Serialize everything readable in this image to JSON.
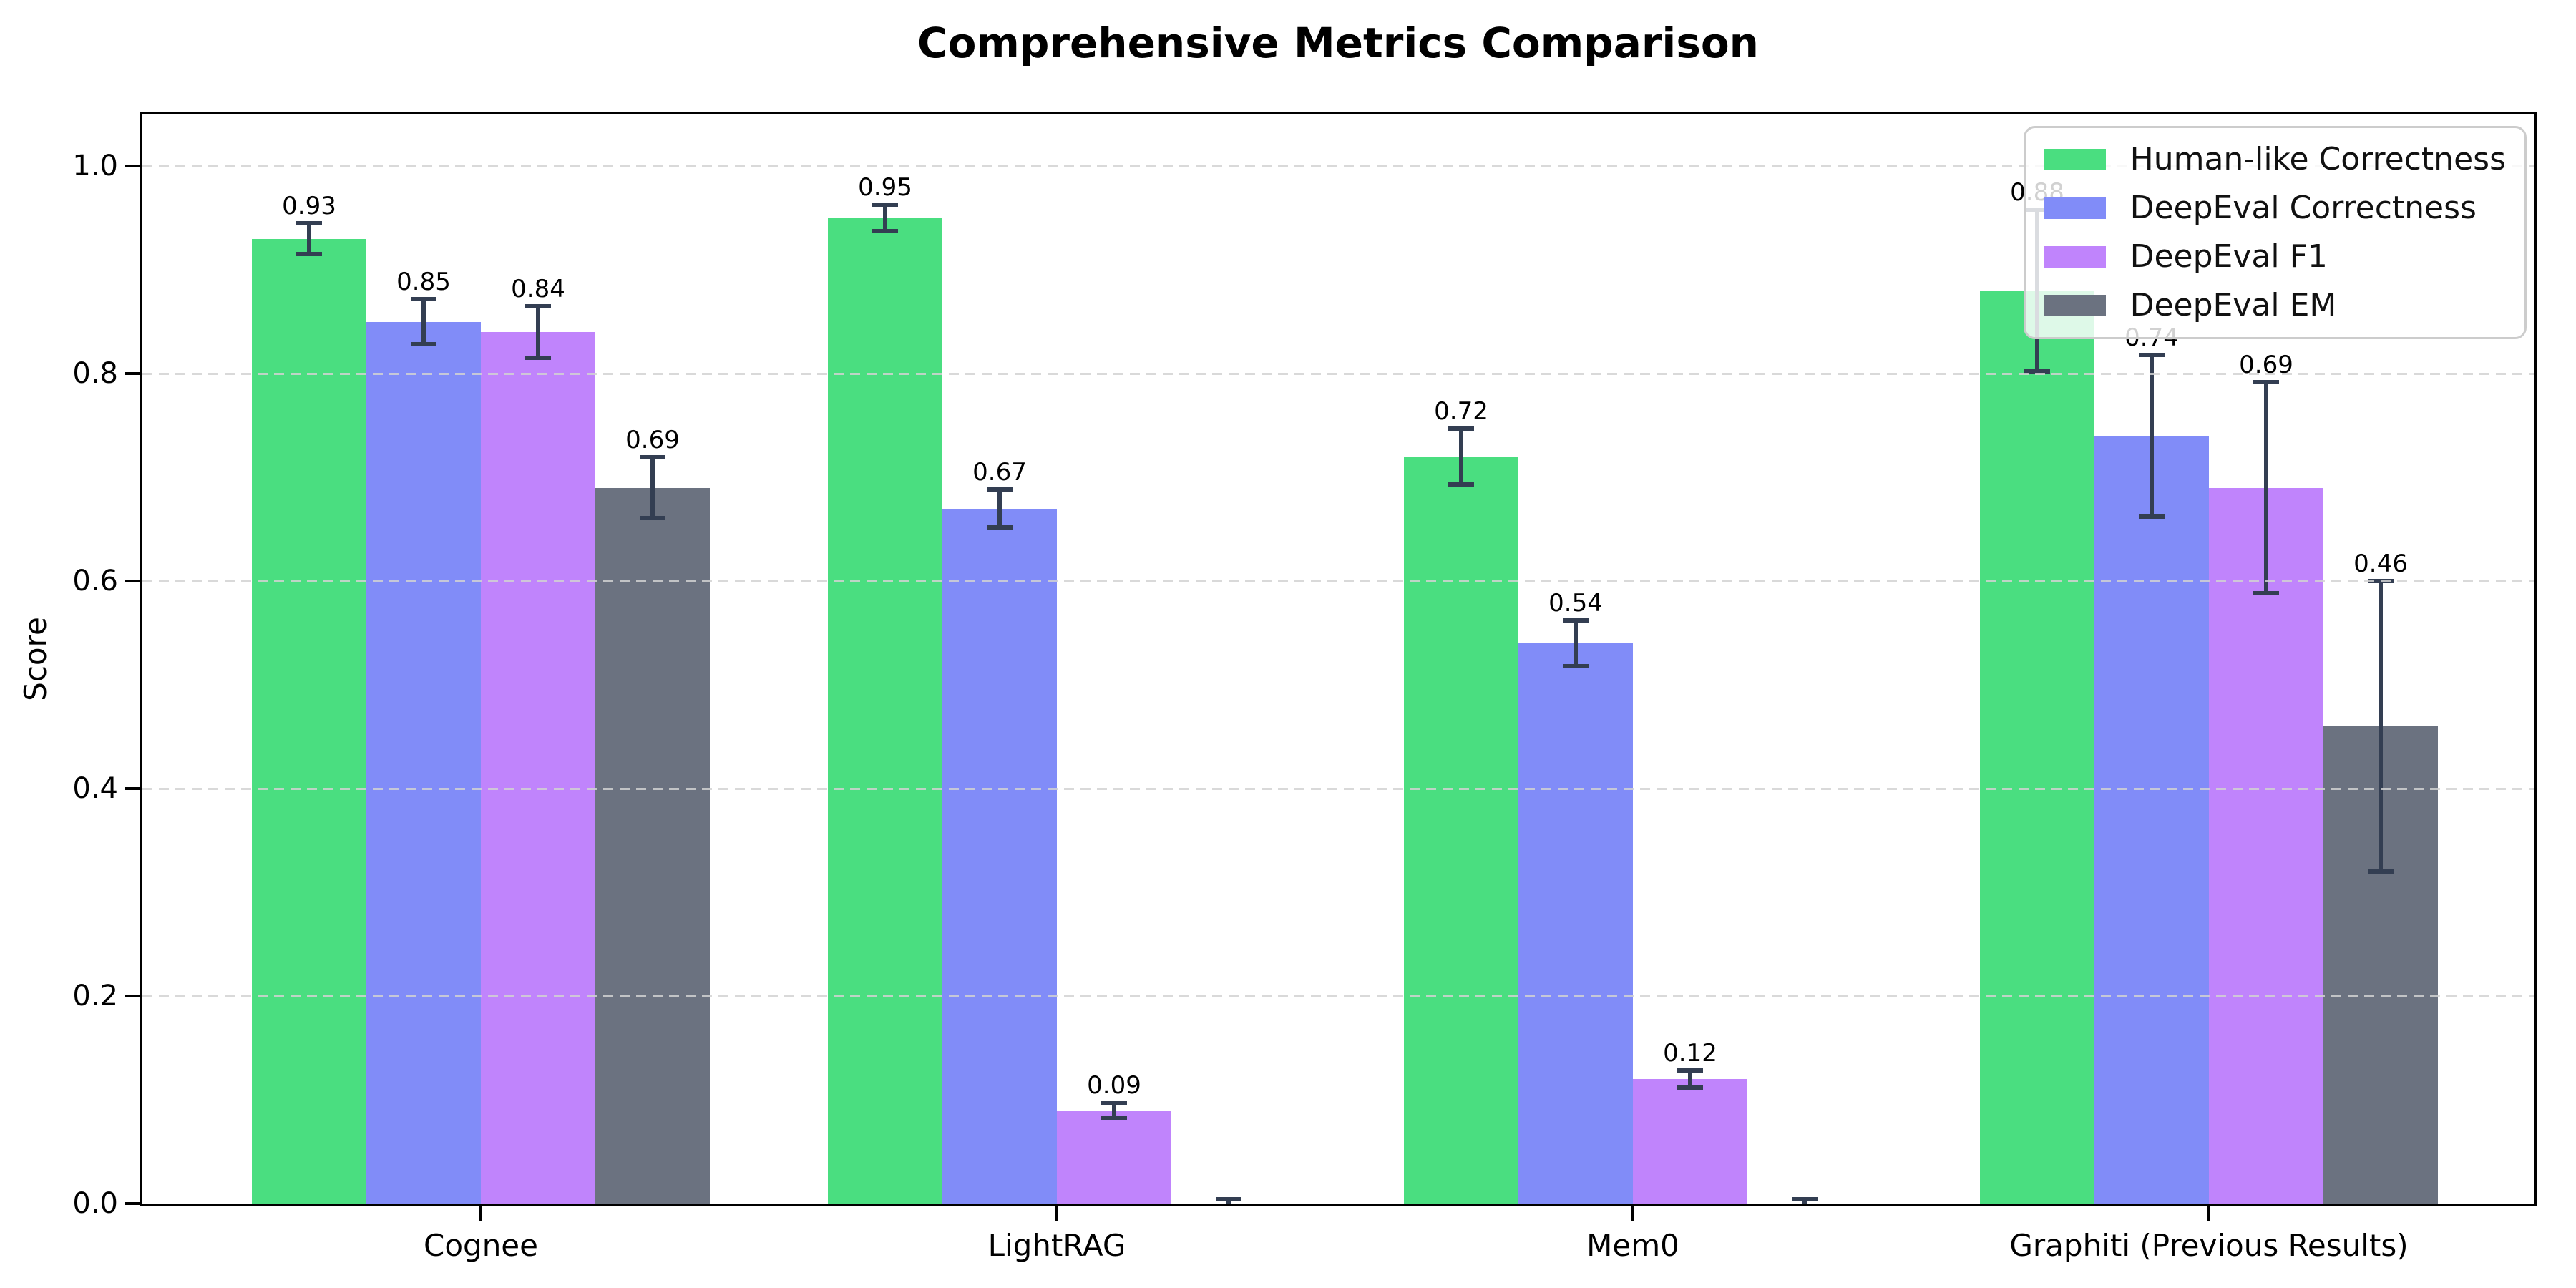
{
  "chart_data": {
    "type": "bar",
    "title": "Comprehensive Metrics Comparison",
    "ylabel": "Score",
    "xlabel": "",
    "categories": [
      "Cognee",
      "LightRAG",
      "Mem0",
      "Graphiti (Previous Results)"
    ],
    "series": [
      {
        "name": "Human-like Correctness",
        "color": "#4ade80",
        "values": [
          0.93,
          0.95,
          0.72,
          0.88
        ],
        "errors": [
          0.015,
          0.013,
          0.027,
          0.078
        ],
        "labels": [
          "0.93",
          "0.95",
          "0.72",
          "0.88"
        ]
      },
      {
        "name": "DeepEval Correctness",
        "color": "#818cf8",
        "values": [
          0.85,
          0.67,
          0.54,
          0.74
        ],
        "errors": [
          0.022,
          0.018,
          0.022,
          0.078
        ],
        "labels": [
          "0.85",
          "0.67",
          "0.54",
          "0.74"
        ]
      },
      {
        "name": "DeepEval F1",
        "color": "#c084fc",
        "values": [
          0.84,
          0.09,
          0.12,
          0.69
        ],
        "errors": [
          0.025,
          0.007,
          0.008,
          0.102
        ],
        "labels": [
          "0.84",
          "0.09",
          "0.12",
          "0.69"
        ]
      },
      {
        "name": "DeepEval EM",
        "color": "#6b7280",
        "values": [
          0.69,
          0.0,
          0.0,
          0.46
        ],
        "errors": [
          0.029,
          0.004,
          0.004,
          0.14
        ],
        "labels": [
          "0.69",
          null,
          null,
          "0.46"
        ]
      }
    ],
    "yticks": [
      "0.0",
      "0.2",
      "0.4",
      "0.6",
      "0.8",
      "1.0"
    ],
    "ylim": [
      0,
      1.05
    ],
    "grid": "dashed-horizontal",
    "legend_position": "upper right",
    "colors": {
      "errorbar": "#333e52",
      "grid": "#d2d2d2",
      "axis": "#000000",
      "label": "#000000"
    }
  }
}
